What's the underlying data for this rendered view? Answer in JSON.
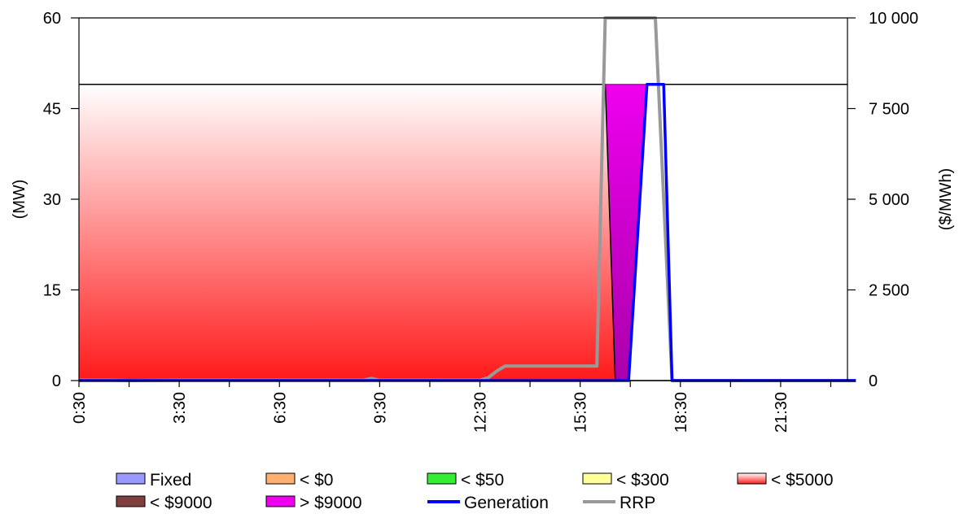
{
  "chart_data": {
    "type": "area",
    "ylabel_left": "(MW)",
    "ylabel_right": "($/MWh)",
    "x_ticks": [
      "0:30",
      "3:30",
      "6:30",
      "9:30",
      "12:30",
      "15:30",
      "18:30",
      "21:30"
    ],
    "x_interval_hours": 0.5,
    "left_ylim": [
      0,
      60
    ],
    "left_ticks": [
      "0",
      "15",
      "30",
      "45",
      "60"
    ],
    "right_ylim": [
      0,
      10000
    ],
    "right_ticks": [
      "0",
      "2 500",
      "5 000",
      "7 500",
      "10 000"
    ],
    "capacity_mw": 49,
    "grid": false,
    "legend_position": "bottom",
    "series": [
      {
        "name": "Fixed",
        "kind": "area",
        "color": "#9999ff",
        "values": []
      },
      {
        "name": "< $0",
        "kind": "area",
        "color": "#ffb070",
        "values": []
      },
      {
        "name": "< $50",
        "kind": "area",
        "color": "#33ee33",
        "values": []
      },
      {
        "name": "< $300",
        "kind": "area",
        "color": "#ffff99",
        "values": []
      },
      {
        "name": "< $5000",
        "kind": "area",
        "color": "#ff1a1a",
        "values": [
          49,
          49,
          49,
          49,
          49,
          49,
          49,
          49,
          49,
          49,
          49,
          49,
          49,
          49,
          49,
          49,
          49,
          49,
          49,
          49,
          49,
          49,
          49,
          49,
          49,
          49,
          49,
          49,
          49,
          49,
          49,
          49,
          49,
          49,
          49,
          49,
          49,
          49,
          49,
          49,
          49,
          49,
          49,
          49,
          49,
          49,
          49,
          49,
          49,
          49,
          49,
          49,
          49,
          49,
          49,
          49,
          49,
          49,
          49,
          49,
          49,
          49,
          49,
          49,
          49,
          49,
          49,
          49,
          49,
          49,
          49,
          49,
          49,
          49,
          49,
          49,
          49,
          49,
          49,
          49
        ]
      },
      {
        "name": "< $9000",
        "kind": "area",
        "color": "#804040",
        "values": []
      },
      {
        "name": "> $9000",
        "kind": "area",
        "color": "#ee00ee",
        "values": []
      },
      {
        "name": "Generation",
        "kind": "line",
        "color": "#0000ff",
        "values": []
      },
      {
        "name": "RRP",
        "kind": "line",
        "color": "#999999",
        "axis": "right",
        "values": []
      }
    ],
    "points": {
      "five_thousand_cap": [
        [
          0,
          49
        ],
        [
          31.5,
          49
        ],
        [
          32.1,
          0
        ],
        [
          46.5,
          0
        ]
      ],
      "over_9000": [
        [
          31.5,
          49
        ],
        [
          34.0,
          49
        ],
        [
          32.9,
          0
        ],
        [
          32.1,
          0
        ]
      ],
      "generation": [
        [
          0,
          0
        ],
        [
          32.9,
          0
        ],
        [
          34.0,
          49
        ],
        [
          34.5,
          49
        ],
        [
          35.0,
          49
        ],
        [
          35.5,
          0
        ],
        [
          46.5,
          0
        ]
      ],
      "rrp": [
        [
          0,
          10
        ],
        [
          2,
          10
        ],
        [
          3,
          0
        ],
        [
          6,
          10
        ],
        [
          17,
          10
        ],
        [
          17.5,
          60
        ],
        [
          18,
          10
        ],
        [
          24,
          10
        ],
        [
          24.5,
          80
        ],
        [
          25,
          260
        ],
        [
          25.5,
          400
        ],
        [
          29.5,
          400
        ],
        [
          30,
          400
        ],
        [
          31,
          400
        ],
        [
          31.5,
          10000
        ],
        [
          34.5,
          10000
        ],
        [
          35.5,
          0
        ],
        [
          46.5,
          0
        ]
      ]
    },
    "legend": [
      {
        "label": "Fixed",
        "type": "box",
        "color": "#9999ff"
      },
      {
        "label": "< $0",
        "type": "box",
        "color": "#ffb070"
      },
      {
        "label": "< $50",
        "type": "box",
        "color": "#33ee33"
      },
      {
        "label": "< $300",
        "type": "box",
        "color": "#ffff99"
      },
      {
        "label": "< $5000",
        "type": "box",
        "color": "#ff1a1a"
      },
      {
        "label": "< $9000",
        "type": "box",
        "color": "#804040"
      },
      {
        "label": "> $9000",
        "type": "box",
        "color": "#ee00ee"
      },
      {
        "label": "Generation",
        "type": "line",
        "color": "#0000ff"
      },
      {
        "label": "RRP",
        "type": "line",
        "color": "#999999"
      }
    ]
  }
}
